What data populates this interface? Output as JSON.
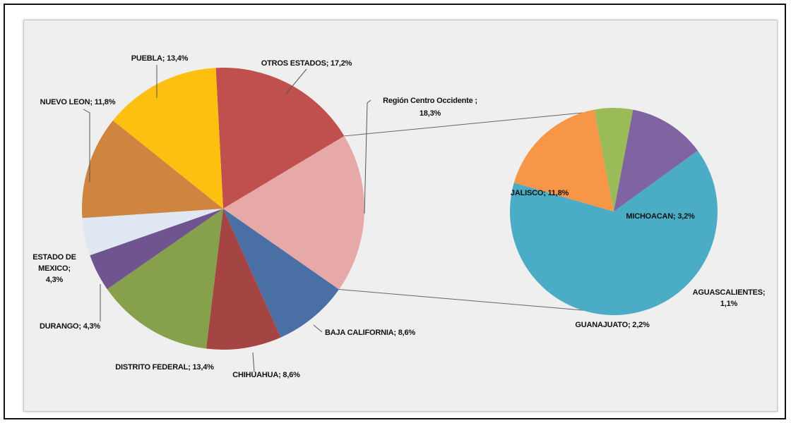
{
  "chart_data": [
    {
      "type": "pie",
      "title": "",
      "slices": [
        {
          "label": "OTROS ESTADOS; 17,2%",
          "value": 17.2,
          "color": "#c0504d"
        },
        {
          "label": "Región Centro Occidente ;",
          "label2": "18,3%",
          "value": 18.3,
          "color": "#e6a9a8"
        },
        {
          "label": "BAJA CALIFORNIA; 8,6%",
          "value": 8.6,
          "color": "#4a6fa5"
        },
        {
          "label": "CHIHUAHUA; 8,6%",
          "value": 8.6,
          "color": "#a54543"
        },
        {
          "label": "DISTRITO FEDERAL; 13,4%",
          "value": 13.4,
          "color": "#86a04c"
        },
        {
          "label": "DURANGO; 4,3%",
          "value": 4.3,
          "color": "#70548f"
        },
        {
          "label": "ESTADO DE",
          "label2": "MEXICO;",
          "label3": "4,3%",
          "value": 4.3,
          "color": "#dfe7f3"
        },
        {
          "label": "NUEVO LEON; 11,8%",
          "value": 11.8,
          "color": "#cf8540"
        },
        {
          "label": "PUEBLA; 13,4%",
          "value": 13.4,
          "color": "#fdc010"
        }
      ]
    },
    {
      "type": "pie",
      "title": "",
      "exploded_from": "Región Centro Occidente ;",
      "slices": [
        {
          "label": "JALISCO; 11,8%",
          "value": 11.8,
          "color": "#4bacc6"
        },
        {
          "label": "MICHOACAN; 3,2%",
          "value": 3.2,
          "color": "#f79646"
        },
        {
          "label": "AGUASCALIENTES;",
          "label2": "1,1%",
          "value": 1.1,
          "color": "#9bbb59"
        },
        {
          "label": "GUANAJUATO; 2,2%",
          "value": 2.2,
          "color": "#8064a2"
        }
      ]
    }
  ]
}
